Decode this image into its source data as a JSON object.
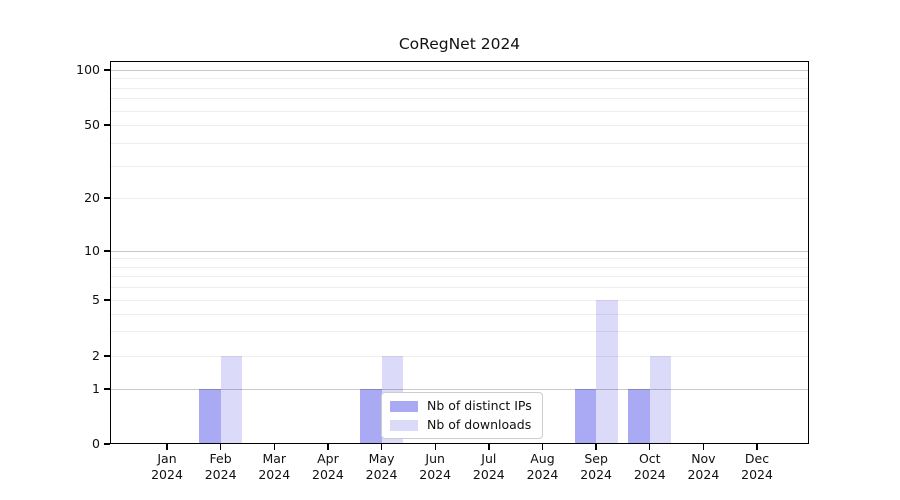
{
  "title": "CoRegNet 2024",
  "chart_data": {
    "type": "bar",
    "title": "CoRegNet 2024",
    "categories": [
      "Jan",
      "Feb",
      "Mar",
      "Apr",
      "May",
      "Jun",
      "Jul",
      "Aug",
      "Sep",
      "Oct",
      "Nov",
      "Dec"
    ],
    "year_label": "2024",
    "series": [
      {
        "name": "Nb of distinct IPs",
        "color": "#a9a9f4",
        "values": [
          0,
          1,
          0,
          0,
          1,
          0,
          0,
          0,
          1,
          1,
          0,
          0
        ]
      },
      {
        "name": "Nb of downloads",
        "color": "#dbdbf9",
        "values": [
          0,
          2,
          0,
          0,
          2,
          0,
          0,
          0,
          5,
          2,
          0,
          0
        ]
      }
    ],
    "ylabel": "",
    "xlabel": "",
    "ylim": [
      0,
      100
    ],
    "yscale": "symlog-like",
    "yticks": [
      0,
      1,
      2,
      5,
      10,
      20,
      50,
      100
    ],
    "minor_grid_values": [
      2,
      3,
      4,
      5,
      6,
      7,
      8,
      9,
      20,
      30,
      40,
      50,
      60,
      70,
      80,
      90
    ],
    "major_grid_values": [
      1,
      10,
      100
    ],
    "grid": true,
    "legend": {
      "labels": [
        "Nb of distinct IPs",
        "Nb of downloads"
      ],
      "position": "inside lower-center"
    }
  },
  "colors": {
    "background": "#ffffff",
    "bar_distinct_ips": "#a9a9f4",
    "bar_downloads": "#dbdbf9",
    "spine": "#000000",
    "grid_major": "#c9c9c9",
    "grid_minor": "#eeeeee",
    "legend_border": "#cccccc",
    "text": "#111111"
  }
}
